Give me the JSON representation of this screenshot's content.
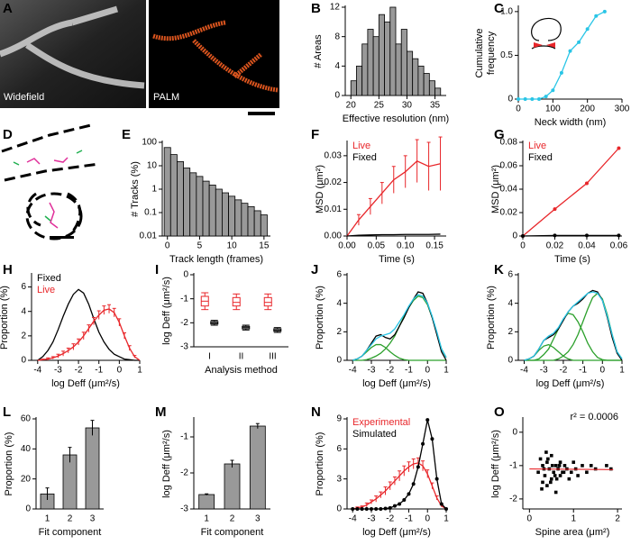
{
  "panels": [
    {
      "label": "A",
      "type": "image",
      "captions": [
        "Widefield",
        "PALM"
      ]
    },
    {
      "label": "B",
      "type": "histogram",
      "bins": [
        20,
        21,
        22,
        23,
        24,
        25,
        26,
        27,
        28,
        29,
        30,
        31,
        32,
        33,
        34,
        35,
        36
      ],
      "counts": [
        2,
        4,
        7,
        9,
        8,
        11,
        10,
        12,
        7,
        9,
        6,
        5,
        4,
        3,
        2,
        1
      ],
      "color": "#999999",
      "xlim": [
        19,
        37
      ],
      "xticks": [
        20,
        25,
        30,
        35
      ],
      "ylim": [
        0,
        12
      ],
      "yticks": [
        0,
        4,
        8,
        12
      ],
      "xlabel": "Effective resolution (nm)",
      "ylabel": [
        "# Areas"
      ]
    },
    {
      "label": "C",
      "type": "line",
      "x": [
        0,
        20,
        40,
        60,
        80,
        100,
        125,
        150,
        175,
        200,
        225,
        250
      ],
      "series": [
        {
          "color": "#29c5e6",
          "markers": true,
          "values": [
            0,
            0,
            0,
            0,
            0.03,
            0.1,
            0.3,
            0.55,
            0.65,
            0.8,
            0.95,
            1.0
          ]
        }
      ],
      "xlim": [
        0,
        300
      ],
      "xticks": [
        0,
        100,
        200,
        300
      ],
      "ylim": [
        0,
        1.05
      ],
      "yticks": [
        0,
        0.5,
        {
          "value": 1,
          "label": "1.0"
        }
      ],
      "xlabel": "Neck width (nm)",
      "ylabel": [
        "Cumulative",
        "frequency"
      ]
    },
    {
      "label": "D",
      "type": "image",
      "captions": []
    },
    {
      "label": "E",
      "type": "histogram",
      "log_y": true,
      "bins": [
        -0.5,
        0.5,
        1.5,
        2.5,
        3.5,
        4.5,
        5.5,
        6.5,
        7.5,
        8.5,
        9.5,
        10.5,
        11.5,
        12.5,
        13.5,
        14.5,
        15.5
      ],
      "counts": [
        60,
        30,
        15,
        8,
        5,
        3.5,
        2.2,
        1.5,
        1,
        0.7,
        0.5,
        0.35,
        0.25,
        0.18,
        0.12,
        0.08
      ],
      "color": "#999999",
      "xlim": [
        -0.8,
        16
      ],
      "xticks": [
        0,
        5,
        10,
        15
      ],
      "ylim": [
        0.01,
        100
      ],
      "yticks": [
        0.01,
        0.1,
        1,
        10,
        100
      ],
      "xlabel": "Track length (frames)",
      "ylabel": [
        "# Tracks (%)"
      ]
    },
    {
      "label": "F",
      "type": "line",
      "legend": "upper left",
      "x": [
        0,
        0.02,
        0.04,
        0.06,
        0.08,
        0.1,
        0.12,
        0.14,
        0.16
      ],
      "series": [
        {
          "name": "Live",
          "color": "#e8262a",
          "values": [
            0,
            0.006,
            0.011,
            0.016,
            0.021,
            0.024,
            0.028,
            0.026,
            0.027
          ],
          "errors": [
            0,
            0.002,
            0.003,
            0.004,
            0.005,
            0.006,
            0.008,
            0.009,
            0.01
          ]
        },
        {
          "name": "Fixed",
          "color": "#000000",
          "values": [
            0,
            0.0003,
            0.0004,
            0.0005,
            0.0005,
            0.0006,
            0.0006,
            0.0006,
            0.0007
          ]
        }
      ],
      "xlim": [
        0,
        0.17
      ],
      "xticks": [
        {
          "value": 0,
          "label": "0.00"
        },
        0.05,
        {
          "value": 0.1,
          "label": "0.10"
        },
        0.15
      ],
      "ylim": [
        0,
        0.035
      ],
      "yticks": [
        {
          "value": 0,
          "label": "0.00"
        },
        0.01,
        0.02,
        0.03
      ],
      "xlabel": "Time (s)",
      "ylabel": [
        "MSD (μm²)"
      ]
    },
    {
      "label": "G",
      "type": "line",
      "legend": "upper left",
      "x": [
        0,
        0.02,
        0.04,
        0.06
      ],
      "series": [
        {
          "name": "Live",
          "color": "#e8262a",
          "markers": true,
          "values": [
            0,
            0.023,
            0.045,
            0.075
          ]
        },
        {
          "name": "Fixed",
          "color": "#000000",
          "markers": true,
          "values": [
            0,
            0.0005,
            0.0005,
            0.0005
          ]
        }
      ],
      "xlim": [
        0,
        0.062
      ],
      "xticks": [
        0,
        0.02,
        0.04,
        0.06
      ],
      "ylim": [
        0,
        0.08
      ],
      "yticks": [
        0,
        0.02,
        0.04,
        0.06,
        0.08
      ],
      "xlabel": "Time (s)",
      "ylabel": [
        "MSD (μm²)"
      ]
    },
    {
      "label": "H",
      "type": "line",
      "legend": "upper left",
      "x": [
        -4,
        -3.75,
        -3.5,
        -3.25,
        -3,
        -2.75,
        -2.5,
        -2.25,
        -2,
        -1.75,
        -1.5,
        -1.25,
        -1,
        -0.75,
        -0.5,
        -0.25,
        0,
        0.25,
        0.5,
        0.75,
        1
      ],
      "series": [
        {
          "name": "Fixed",
          "color": "#000000",
          "values": [
            0,
            0.3,
            0.8,
            1.5,
            2.5,
            3.6,
            4.6,
            5.4,
            5.8,
            5.5,
            4.6,
            3.4,
            2.3,
            1.5,
            0.9,
            0.5,
            0.3,
            0.1,
            0.05,
            0,
            0
          ]
        },
        {
          "name": "Live",
          "color": "#e8262a",
          "values": [
            0,
            0.05,
            0.1,
            0.2,
            0.35,
            0.55,
            0.8,
            1.1,
            1.5,
            2,
            2.6,
            3.2,
            3.7,
            4.1,
            4.2,
            3.9,
            3.1,
            2,
            1,
            0.3,
            0
          ],
          "errors": [
            0,
            0.05,
            0.1,
            0.1,
            0.15,
            0.2,
            0.2,
            0.25,
            0.25,
            0.3,
            0.3,
            0.3,
            0.35,
            0.35,
            0.35,
            0.35,
            0.3,
            0.25,
            0.2,
            0.1,
            0
          ]
        }
      ],
      "xlim": [
        -4.3,
        1
      ],
      "xticks": [
        -4,
        -3,
        -2,
        -1,
        0,
        1
      ],
      "ylim": [
        0,
        7
      ],
      "yticks": [
        0,
        2,
        4,
        6
      ],
      "xlabel": "log Deff (μm²/s)",
      "ylabel": [
        "Proportion (%)"
      ]
    },
    {
      "label": "I",
      "type": "box",
      "categories": [
        "I",
        "II",
        "III"
      ],
      "series": [
        {
          "color": "#e8262a",
          "boxes": [
            {
              "whislo": -1.45,
              "q1": -1.3,
              "med": -1.1,
              "q3": -0.9,
              "whishi": -0.75
            },
            {
              "whislo": -1.45,
              "q1": -1.3,
              "med": -1.15,
              "q3": -0.95,
              "whishi": -0.8
            },
            {
              "whislo": -1.45,
              "q1": -1.3,
              "med": -1.15,
              "q3": -0.95,
              "whishi": -0.8
            }
          ]
        },
        {
          "color": "#000000",
          "boxes": [
            {
              "whislo": -2.1,
              "q1": -2.05,
              "med": -2,
              "q3": -1.95,
              "whishi": -1.9
            },
            {
              "whislo": -2.3,
              "q1": -2.25,
              "med": -2.2,
              "q3": -2.15,
              "whishi": -2.1
            },
            {
              "whislo": -2.4,
              "q1": -2.35,
              "med": -2.3,
              "q3": -2.25,
              "whishi": -2.2
            }
          ]
        }
      ],
      "ylim": [
        -3,
        0
      ],
      "yticks": [
        -3,
        -2,
        -1,
        0
      ],
      "xlabel": "Analysis method",
      "ylabel": [
        "log Deff (μm²/s)"
      ]
    },
    {
      "label": "J",
      "type": "line",
      "x": [
        -4,
        -3.75,
        -3.5,
        -3.25,
        -3,
        -2.75,
        -2.5,
        -2.25,
        -2,
        -1.75,
        -1.5,
        -1.25,
        -1,
        -0.75,
        -0.5,
        -0.25,
        0,
        0.25,
        0.5,
        0.75,
        1
      ],
      "series": [
        {
          "color": "#2ca02c",
          "values": [
            0,
            0.1,
            0.3,
            0.6,
            0.9,
            1.1,
            1.1,
            0.9,
            0.6,
            0.35,
            0.15,
            0.05,
            0,
            0,
            0,
            0,
            0,
            0,
            0,
            0,
            0
          ]
        },
        {
          "color": "#2ca02c",
          "values": [
            0,
            0,
            0,
            0.05,
            0.15,
            0.3,
            0.5,
            0.8,
            1.2,
            1.7,
            2.4,
            3.1,
            3.7,
            4.2,
            4.5,
            4.4,
            3.9,
            3,
            1.9,
            0.8,
            0.2
          ]
        },
        {
          "color": "#000000",
          "values": [
            0,
            0.1,
            0.3,
            0.7,
            1.2,
            1.7,
            1.8,
            1.6,
            1.5,
            1.8,
            2.4,
            3,
            3.7,
            4.3,
            4.8,
            4.7,
            4,
            3,
            1.8,
            0.6,
            0
          ]
        },
        {
          "color": "#29c5e6",
          "values": [
            0,
            0.1,
            0.3,
            0.7,
            1.1,
            1.5,
            1.7,
            1.8,
            1.9,
            2.2,
            2.7,
            3.2,
            3.8,
            4.3,
            4.6,
            4.5,
            4,
            3.1,
            2,
            0.8,
            0.2
          ]
        }
      ],
      "xlim": [
        -4.3,
        1
      ],
      "xticks": [
        -4,
        -3,
        -2,
        -1,
        0,
        1
      ],
      "ylim": [
        0,
        6
      ],
      "yticks": [
        0,
        2,
        4,
        6
      ],
      "xlabel": "log Deff (μm²/s)",
      "ylabel": [
        "Proportion (%)"
      ]
    },
    {
      "label": "K",
      "type": "line",
      "x": [
        -4,
        -3.75,
        -3.5,
        -3.25,
        -3,
        -2.75,
        -2.5,
        -2.25,
        -2,
        -1.75,
        -1.5,
        -1.25,
        -1,
        -0.75,
        -0.5,
        -0.25,
        0,
        0.25,
        0.5,
        0.75,
        1
      ],
      "series": [
        {
          "color": "#2ca02c",
          "values": [
            0,
            0.1,
            0.3,
            0.7,
            1,
            1.1,
            0.9,
            0.6,
            0.3,
            0.1,
            0,
            0,
            0,
            0,
            0,
            0,
            0,
            0,
            0,
            0,
            0
          ]
        },
        {
          "color": "#2ca02c",
          "values": [
            0,
            0,
            0,
            0.1,
            0.4,
            0.8,
            1.5,
            2.2,
            2.9,
            3.3,
            3.2,
            2.7,
            2,
            1.2,
            0.6,
            0.2,
            0.05,
            0,
            0,
            0,
            0
          ]
        },
        {
          "color": "#2ca02c",
          "values": [
            0,
            0,
            0,
            0,
            0,
            0,
            0,
            0.1,
            0.3,
            0.6,
            1.1,
            1.8,
            2.7,
            3.6,
            4.4,
            4.7,
            4.3,
            3.2,
            1.8,
            0.6,
            0.1
          ]
        },
        {
          "color": "#000000",
          "values": [
            0,
            0.1,
            0.3,
            0.8,
            1.4,
            1.6,
            1.8,
            2.2,
            2.8,
            3.4,
            3.8,
            4,
            4.3,
            4.7,
            4.9,
            4.8,
            4.2,
            3,
            1.6,
            0.5,
            0
          ]
        },
        {
          "color": "#29c5e6",
          "values": [
            0,
            0.1,
            0.3,
            0.8,
            1.4,
            1.7,
            1.9,
            2.3,
            2.9,
            3.4,
            3.8,
            4.1,
            4.4,
            4.7,
            4.8,
            4.7,
            4.2,
            3.1,
            1.8,
            0.6,
            0.1
          ]
        }
      ],
      "xlim": [
        -4.3,
        1
      ],
      "xticks": [
        -4,
        -3,
        -2,
        -1,
        0,
        1
      ],
      "ylim": [
        0,
        6
      ],
      "yticks": [
        0,
        2,
        4,
        6
      ],
      "xlabel": "log Deff (μm²/s)",
      "ylabel": [
        "Proportion (%)"
      ]
    },
    {
      "label": "L",
      "type": "bar",
      "categories": [
        "1",
        "2",
        "3"
      ],
      "values": [
        10,
        36,
        54
      ],
      "errors": [
        4,
        5,
        5
      ],
      "color": "#999999",
      "ylim": [
        0,
        60
      ],
      "yticks": [
        0,
        20,
        40,
        60
      ],
      "xlabel": "Fit component",
      "ylabel": [
        "Proportion (%)"
      ]
    },
    {
      "label": "M",
      "type": "bar",
      "categories": [
        "1",
        "2",
        "3"
      ],
      "values": [
        -2.6,
        -1.75,
        -0.7
      ],
      "errors": [
        0.02,
        0.1,
        0.07
      ],
      "color": "#999999",
      "ylim": [
        -3,
        -0.5
      ],
      "yticks": [
        -3,
        -2,
        -1
      ],
      "xlabel": "Fit component",
      "ylabel": [
        "log Deff (μm²/s)"
      ]
    },
    {
      "label": "N",
      "type": "line",
      "legend": "upper left",
      "x": [
        -4,
        -3.75,
        -3.5,
        -3.25,
        -3,
        -2.75,
        -2.5,
        -2.25,
        -2,
        -1.75,
        -1.5,
        -1.25,
        -1,
        -0.75,
        -0.5,
        -0.25,
        0,
        0.25,
        0.5,
        0.75,
        1
      ],
      "series": [
        {
          "name": "Experimental",
          "color": "#e8262a",
          "values": [
            0,
            0.1,
            0.2,
            0.4,
            0.7,
            1,
            1.4,
            1.8,
            2.3,
            2.8,
            3.3,
            3.8,
            4.2,
            4.5,
            4.6,
            4.3,
            3.5,
            2.3,
            1.1,
            0.3,
            0
          ],
          "errors": [
            0,
            0.1,
            0.1,
            0.2,
            0.2,
            0.3,
            0.3,
            0.4,
            0.4,
            0.4,
            0.5,
            0.5,
            0.5,
            0.5,
            0.5,
            0.5,
            0.4,
            0.3,
            0.2,
            0.1,
            0
          ]
        },
        {
          "name": "Simulated",
          "color": "#000000",
          "markers": true,
          "values": [
            0,
            0,
            0,
            0,
            0,
            0,
            0,
            0.05,
            0.1,
            0.3,
            0.5,
            0.9,
            1.5,
            2.5,
            4.2,
            6.5,
            8.9,
            7,
            3,
            0.5,
            0
          ]
        }
      ],
      "xlim": [
        -4.3,
        1
      ],
      "xticks": [
        -4,
        -3,
        -2,
        -1,
        0,
        1
      ],
      "ylim": [
        0,
        9
      ],
      "yticks": [
        0,
        3,
        6,
        9
      ],
      "xlabel": "log Deff (μm²/s)",
      "ylabel": [
        "Proportion (%)"
      ]
    },
    {
      "label": "O",
      "type": "scatter",
      "annotation": "r² = 0.0006",
      "x": [
        0.2,
        0.25,
        0.3,
        0.3,
        0.35,
        0.4,
        0.4,
        0.45,
        0.5,
        0.5,
        0.55,
        0.6,
        0.6,
        0.65,
        0.7,
        0.7,
        0.75,
        0.8,
        0.85,
        0.9,
        0.95,
        1.0,
        1.05,
        1.1,
        1.2,
        1.3,
        1.4,
        1.5,
        1.75,
        1.85,
        0.28,
        0.38,
        0.48,
        0.58,
        0.68,
        0.78,
        0.62,
        0.52,
        0.42,
        0.33
      ],
      "y": [
        -1.2,
        -0.8,
        -1.5,
        -1.0,
        -1.3,
        -0.9,
        -1.6,
        -1.1,
        -1.4,
        -0.7,
        -1.2,
        -1.0,
        -1.8,
        -1.1,
        -0.9,
        -1.3,
        -1.2,
        -1.0,
        -1.1,
        -1.4,
        -1.2,
        -0.9,
        -1.1,
        -1.3,
        -1.0,
        -1.2,
        -1.0,
        -1.1,
        -1.0,
        -1.1,
        -1.7,
        -0.6,
        -1.5,
        -1.3,
        -1.0,
        -1.2,
        -1.4,
        -1.0,
        -0.8,
        -1.1
      ],
      "color": "#000000",
      "fit": {
        "color": "#e8262a",
        "x": [
          0,
          1.9
        ],
        "y": [
          -1.1,
          -1.12
        ]
      },
      "xlim": [
        -0.15,
        2.1
      ],
      "xticks": [
        0,
        1,
        2
      ],
      "ylim": [
        -2.3,
        0.4
      ],
      "yticks": [
        -2,
        -1,
        0
      ],
      "xlabel": "Spine area (μm²)",
      "ylabel": [
        "log Deff (μm²/s)"
      ]
    }
  ]
}
